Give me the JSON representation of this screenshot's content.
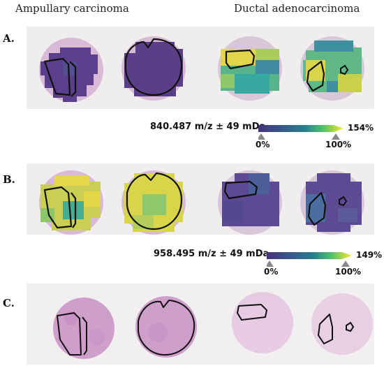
{
  "columns": {
    "left": "Ampullary carcinoma",
    "right": "Ductal adenocarcinoma"
  },
  "rows": {
    "a": "A.",
    "b": "B.",
    "c": "C."
  },
  "legends": [
    {
      "mz": "840.487 m/z ± 49 mDa",
      "min": "0%",
      "mid": "100%",
      "max": "154%"
    },
    {
      "mz": "958.495 m/z ± 49 mDa",
      "min": "0%",
      "mid": "100%",
      "max": "149%"
    }
  ],
  "colors": {
    "viridis_purple": "#5a3f86",
    "viridis_teal": "#3ba89e",
    "viridis_yellow": "#e6d540",
    "he_pink": "#d9b6d4",
    "outline": "#111111"
  }
}
